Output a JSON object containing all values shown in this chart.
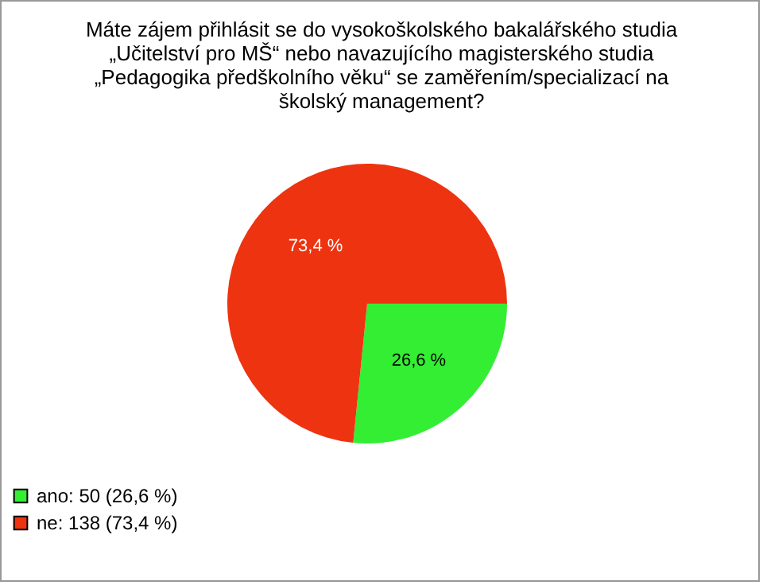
{
  "chart_data": {
    "type": "pie",
    "title": "Máte zájem přihlásit se do vysokoškolského bakalářského studia\n„Učitelství pro MŠ“ nebo navazujícího magisterského studia\n„Pedagogika předškolního věku“ se zaměřením/specializací na\nškolský management?",
    "categories": [
      "ano: 50 (26,6 %)",
      "ne: 138 (73,4 %)"
    ],
    "values": [
      26.6,
      73.4
    ],
    "value_labels": [
      "26,6 %",
      "73,4 %"
    ],
    "colors": [
      "#33ee33",
      "#ee3311"
    ],
    "legend": "bottom left"
  }
}
